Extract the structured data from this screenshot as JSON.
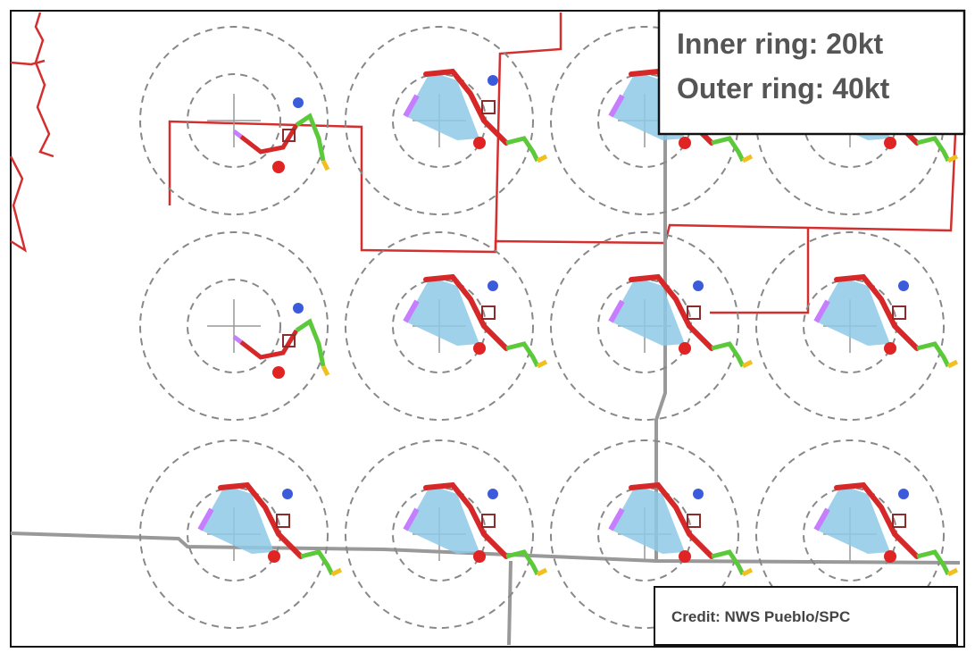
{
  "legend": {
    "inner": "Inner ring: 20kt",
    "outer": "Outer ring: 40kt"
  },
  "credit": "Credit: NWS Pueblo/SPC"
}
